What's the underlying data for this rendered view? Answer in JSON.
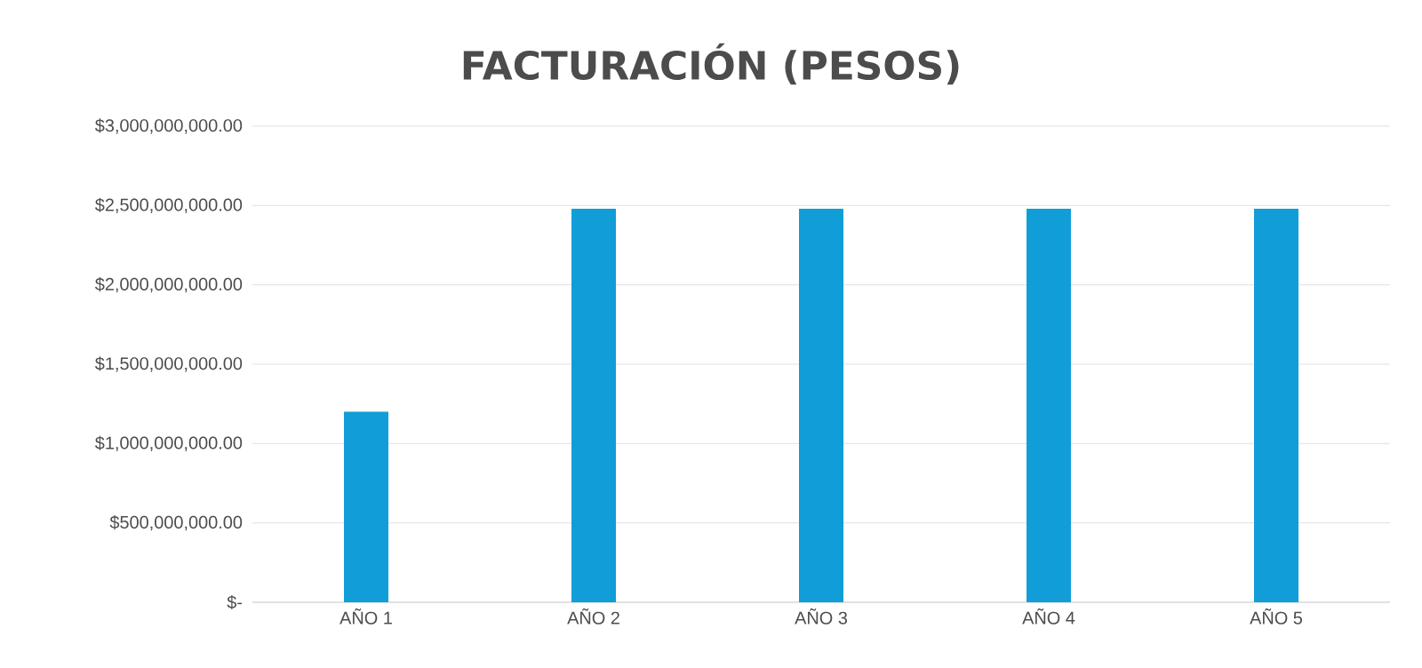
{
  "chart_data": {
    "type": "bar",
    "title": "FACTURACIÓN (PESOS)",
    "categories": [
      "AÑO 1",
      "AÑO 2",
      "AÑO 3",
      "AÑO 4",
      "AÑO 5"
    ],
    "values": [
      1200000000,
      2480000000,
      2480000000,
      2480000000,
      2480000000
    ],
    "color": "#119ed8",
    "ylim": [
      0,
      3000000000
    ],
    "yticks": [
      {
        "value": 0,
        "label": "$-"
      },
      {
        "value": 500000000,
        "label": "$500,000,000.00"
      },
      {
        "value": 1000000000,
        "label": "$1,000,000,000.00"
      },
      {
        "value": 1500000000,
        "label": "$1,500,000,000.00"
      },
      {
        "value": 2000000000,
        "label": "$2,000,000,000.00"
      },
      {
        "value": 2500000000,
        "label": "$2,500,000,000.00"
      },
      {
        "value": 3000000000,
        "label": "$3,000,000,000.00"
      }
    ],
    "grid": "y"
  }
}
